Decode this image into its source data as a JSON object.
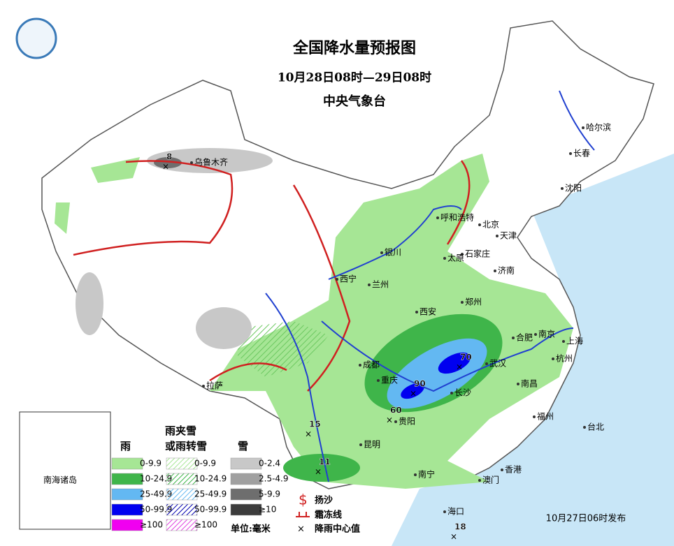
{
  "header": {
    "title": "全国降水量预报图",
    "period": "10月28日08时—29日08时",
    "issuer": "中央气象台"
  },
  "cities": [
    "乌鲁木齐",
    "哈尔滨",
    "长春",
    "沈阳",
    "呼和浩特",
    "北京",
    "天津",
    "石家庄",
    "太原",
    "济南",
    "银川",
    "西宁",
    "兰州",
    "西安",
    "郑州",
    "合肥",
    "南京",
    "上海",
    "杭州",
    "武汉",
    "长沙",
    "南昌",
    "福州",
    "台北",
    "成都",
    "重庆",
    "贵阳",
    "昆明",
    "南宁",
    "香港",
    "澳门",
    "海口",
    "拉萨"
  ],
  "centers": [
    8,
    70,
    90,
    60,
    15,
    11,
    18
  ],
  "inset": "南海诸岛",
  "legend": {
    "rain": {
      "title": "雨",
      "items": [
        {
          "label": "0-9.9",
          "color": "#a6e695"
        },
        {
          "label": "10-24.9",
          "color": "#3fb54a"
        },
        {
          "label": "25-49.9",
          "color": "#63b8f2"
        },
        {
          "label": "50-99.9",
          "color": "#0000f0"
        },
        {
          "label": "≥100",
          "color": "#f000f0"
        }
      ]
    },
    "sleet": {
      "title": "雨夹雪",
      "title2": "或雨转雪",
      "items": [
        {
          "label": "0-9.9",
          "color": "#a6e695"
        },
        {
          "label": "10-24.9",
          "color": "#3fb54a"
        },
        {
          "label": "25-49.9",
          "color": "#63b8f2"
        },
        {
          "label": "50-99.9",
          "color": "#0000b0"
        },
        {
          "label": "≥100",
          "color": "#e040e0"
        }
      ]
    },
    "snow": {
      "title": "雪",
      "items": [
        {
          "label": "0-2.4",
          "color": "#c8c8c8"
        },
        {
          "label": "2.5-4.9",
          "color": "#a0a0a0"
        },
        {
          "label": "5-9.9",
          "color": "#6e6e6e"
        },
        {
          "label": "≥10",
          "color": "#3c3c3c"
        }
      ]
    },
    "sand": "扬沙",
    "frost": "霜冻线",
    "center": "降雨中心值",
    "unit": "单位:毫米"
  },
  "issued": "10月27日06时发布"
}
